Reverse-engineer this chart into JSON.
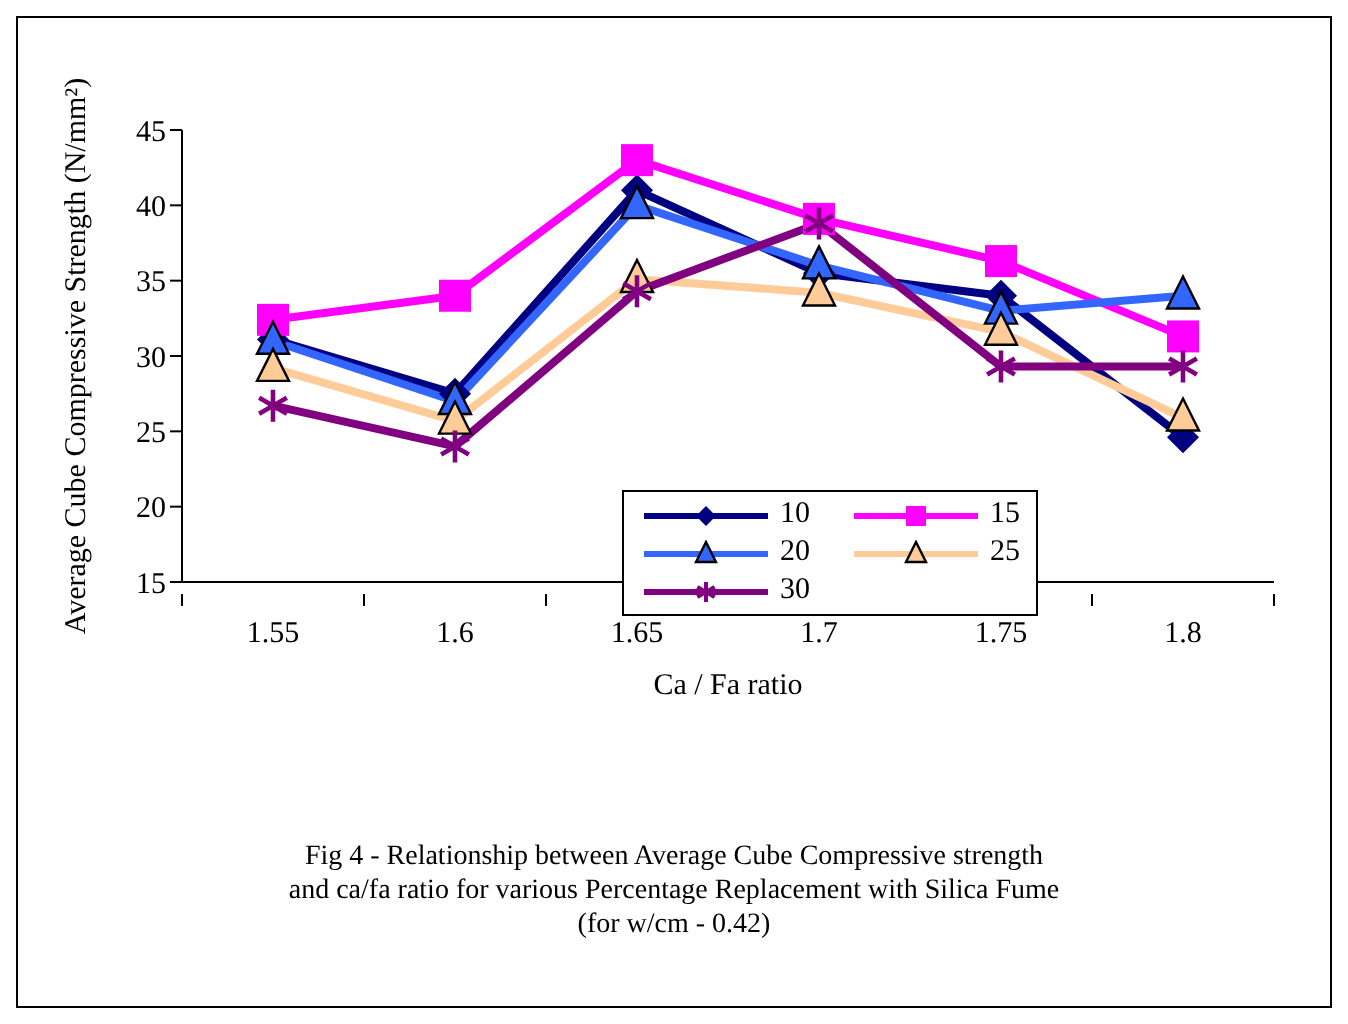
{
  "chart_data": {
    "type": "line",
    "xlabel": "Ca / Fa ratio",
    "ylabel": "Average Cube Compressive Strength (N/mm²)",
    "categories": [
      "1.55",
      "1.6",
      "1.65",
      "1.7",
      "1.75",
      "1.8"
    ],
    "ylim": [
      15,
      45
    ],
    "yticks": [
      15,
      20,
      25,
      30,
      35,
      40,
      45
    ],
    "grid": false,
    "legend": "bottom right",
    "line_style": "solid",
    "series": [
      {
        "name": "10",
        "color": "#000080",
        "marker": "diamond",
        "values": [
          31.1,
          27.5,
          41,
          35.5,
          34,
          24.6
        ]
      },
      {
        "name": "15",
        "color": "#ff00ff",
        "marker": "square",
        "values": [
          32.4,
          34,
          43,
          39.1,
          36.3,
          31.3
        ]
      },
      {
        "name": "20",
        "color": "#3366ff",
        "marker": "triangle",
        "values": [
          31,
          27,
          40,
          36,
          33,
          34
        ]
      },
      {
        "name": "25",
        "color": "#ffcc99",
        "marker": "triangle",
        "values": [
          29.2,
          25.7,
          35.1,
          34.2,
          31.6,
          25.9
        ]
      },
      {
        "name": "30",
        "color": "#800080",
        "marker": "cross",
        "values": [
          26.7,
          24,
          34.3,
          38.8,
          29.3,
          29.3
        ]
      }
    ],
    "annotations": [
      "Fig 4 - Relationship between Average Cube Compressive strength",
      "and ca/fa ratio for various Percentage Replacement with Silica Fume",
      "(for w/cm - 0.42)"
    ]
  }
}
